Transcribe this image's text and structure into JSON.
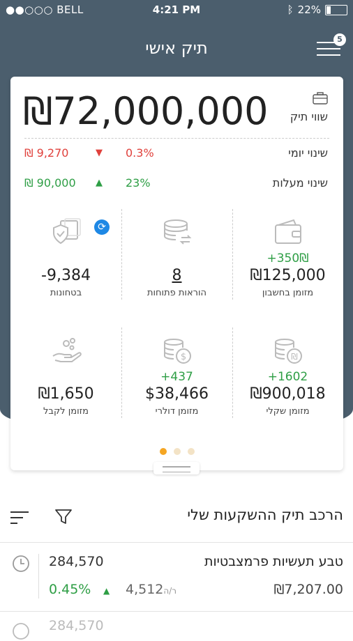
{
  "status": {
    "carrier": "●●○○○ BELL",
    "time": "4:21 PM",
    "battery": "22%"
  },
  "header": {
    "title": "תיק אישי",
    "notification_count": "5"
  },
  "portfolio": {
    "value": "₪72,000,000",
    "label": "שווי תיק",
    "daily": {
      "label": "שינוי יומי",
      "percent": "0.3%",
      "amount": "₪ 9,270",
      "direction": "down"
    },
    "total": {
      "label": "שינוי מעלות",
      "percent": "23%",
      "amount": "₪ 90,000",
      "direction": "up"
    }
  },
  "tiles": [
    {
      "label": "מזומן בחשבון",
      "value": "₪125,000",
      "delta": "+350₪",
      "icon": "wallet-icon"
    },
    {
      "label": "הוראות פתוחות",
      "value": "8",
      "delta": "",
      "icon": "coins-transfer-icon"
    },
    {
      "label": "בטחונות",
      "value": "-9,384",
      "delta": "",
      "icon": "shield-documents-icon"
    },
    {
      "label": "מזומן שקלי",
      "value": "₪900,018",
      "delta": "+1602",
      "icon": "coins-shekel-icon"
    },
    {
      "label": "מזומן דולרי",
      "value": "$38,466",
      "delta": "+437",
      "icon": "coins-dollar-icon"
    },
    {
      "label": "מזומן לקבל",
      "value": "₪1,650",
      "delta": "",
      "icon": "hand-coins-icon"
    }
  ],
  "pager": {
    "pages": 3,
    "active": 0
  },
  "holdings": {
    "title": "הרכב תיק ההשקעות שלי",
    "items": [
      {
        "name": "טבע תעשיות פרמצבטיות",
        "quantity": "284,570",
        "price": "₪7,207.00",
        "change_value": "4,512",
        "change_unit": "ר/ה",
        "change_percent": "0.45%",
        "direction": "up"
      }
    ],
    "partial_next": "284,570"
  },
  "colors": {
    "header": "#4b5e6d",
    "up": "#2e9e45",
    "down": "#e0413c",
    "accent": "#f5a623",
    "sync": "#1e88e5"
  }
}
